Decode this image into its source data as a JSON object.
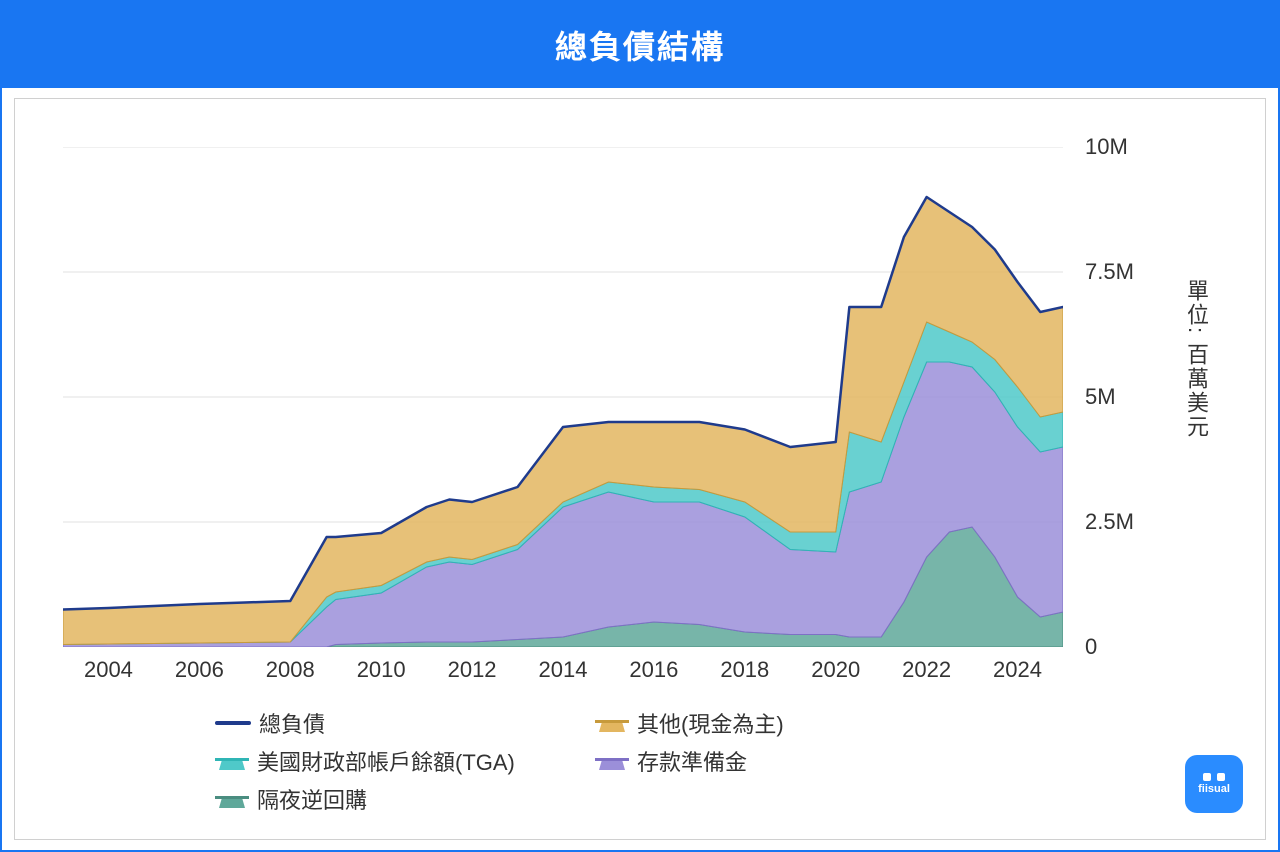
{
  "header": {
    "title": "總負債結構"
  },
  "yaxis": {
    "title": "單位: 百萬美元",
    "ticks": [
      {
        "value": 0,
        "label": "0"
      },
      {
        "value": 2500000,
        "label": "2.5M"
      },
      {
        "value": 5000000,
        "label": "5M"
      },
      {
        "value": 7500000,
        "label": "7.5M"
      },
      {
        "value": 10000000,
        "label": "10M"
      }
    ],
    "ylim": [
      0,
      10000000
    ],
    "label_fontsize": 22
  },
  "xaxis": {
    "ticks": [
      2004,
      2006,
      2008,
      2010,
      2012,
      2014,
      2016,
      2018,
      2020,
      2022,
      2024
    ],
    "xlim": [
      2003,
      2025
    ],
    "label_fontsize": 22
  },
  "legend": {
    "items": [
      {
        "key": "total",
        "label": "總負債",
        "type": "line"
      },
      {
        "key": "other",
        "label": "其他(現金為主)",
        "type": "area"
      },
      {
        "key": "tga",
        "label": "美國財政部帳戶餘額(TGA)",
        "type": "area"
      },
      {
        "key": "reserves",
        "label": "存款準備金",
        "type": "area"
      },
      {
        "key": "rrp",
        "label": "隔夜逆回購",
        "type": "area"
      }
    ]
  },
  "colors": {
    "total_line": "#1f3b8c",
    "other_fill": "#e3b660",
    "other_stroke": "#c79a3c",
    "tga_fill": "#4fc9c9",
    "tga_stroke": "#2fb5b5",
    "reserves_fill": "#9b8fd9",
    "reserves_stroke": "#7e70c5",
    "rrp_fill": "#5fa89a",
    "rrp_stroke": "#4a8d80",
    "grid": "#e2e2e2",
    "background": "#ffffff",
    "header_bg": "#1976f2",
    "header_text": "#ffffff",
    "border": "#1976f2",
    "tick_text": "#333333"
  },
  "chart": {
    "type": "stacked-area-with-line",
    "line_width": 2.5,
    "area_opacity": 0.85,
    "years": [
      2003,
      2004,
      2005,
      2006,
      2007,
      2008,
      2008.8,
      2009,
      2010,
      2011,
      2011.5,
      2012,
      2013,
      2014,
      2015,
      2016,
      2017,
      2018,
      2019,
      2020,
      2020.3,
      2021,
      2021.5,
      2022,
      2022.5,
      2023,
      2023.5,
      2024,
      2024.5,
      2025
    ],
    "series": {
      "rrp": [
        0,
        0,
        0,
        0,
        0,
        0,
        0,
        50000,
        80000,
        100000,
        100000,
        100000,
        150000,
        200000,
        400000,
        500000,
        450000,
        300000,
        250000,
        250000,
        200000,
        200000,
        900000,
        1800000,
        2300000,
        2400000,
        1800000,
        1000000,
        600000,
        700000
      ],
      "reserves": [
        50000,
        60000,
        70000,
        80000,
        90000,
        100000,
        800000,
        900000,
        1000000,
        1500000,
        1600000,
        1550000,
        1800000,
        2600000,
        2700000,
        2400000,
        2450000,
        2300000,
        1700000,
        1650000,
        2900000,
        3100000,
        3700000,
        3900000,
        3400000,
        3200000,
        3300000,
        3400000,
        3300000,
        3300000
      ],
      "tga": [
        0,
        0,
        0,
        0,
        0,
        0,
        200000,
        150000,
        150000,
        100000,
        100000,
        100000,
        100000,
        100000,
        200000,
        300000,
        250000,
        300000,
        350000,
        400000,
        1200000,
        800000,
        700000,
        800000,
        600000,
        500000,
        650000,
        800000,
        700000,
        700000
      ],
      "other": [
        700000,
        720000,
        750000,
        780000,
        800000,
        820000,
        1200000,
        1100000,
        1050000,
        1100000,
        1150000,
        1150000,
        1150000,
        1500000,
        1200000,
        1300000,
        1350000,
        1450000,
        1700000,
        1800000,
        2500000,
        2700000,
        2900000,
        2500000,
        2400000,
        2300000,
        2200000,
        2100000,
        2100000,
        2100000
      ]
    },
    "total_line_series": [
      750000,
      780000,
      820000,
      860000,
      890000,
      920000,
      2200000,
      2200000,
      2280000,
      2800000,
      2950000,
      2900000,
      3200000,
      4400000,
      4500000,
      4500000,
      4500000,
      4350000,
      4000000,
      4100000,
      6800000,
      6800000,
      8200000,
      9000000,
      8700000,
      8400000,
      7950000,
      7300000,
      6700000,
      6800000
    ]
  },
  "brand": {
    "name": "fiisual"
  }
}
